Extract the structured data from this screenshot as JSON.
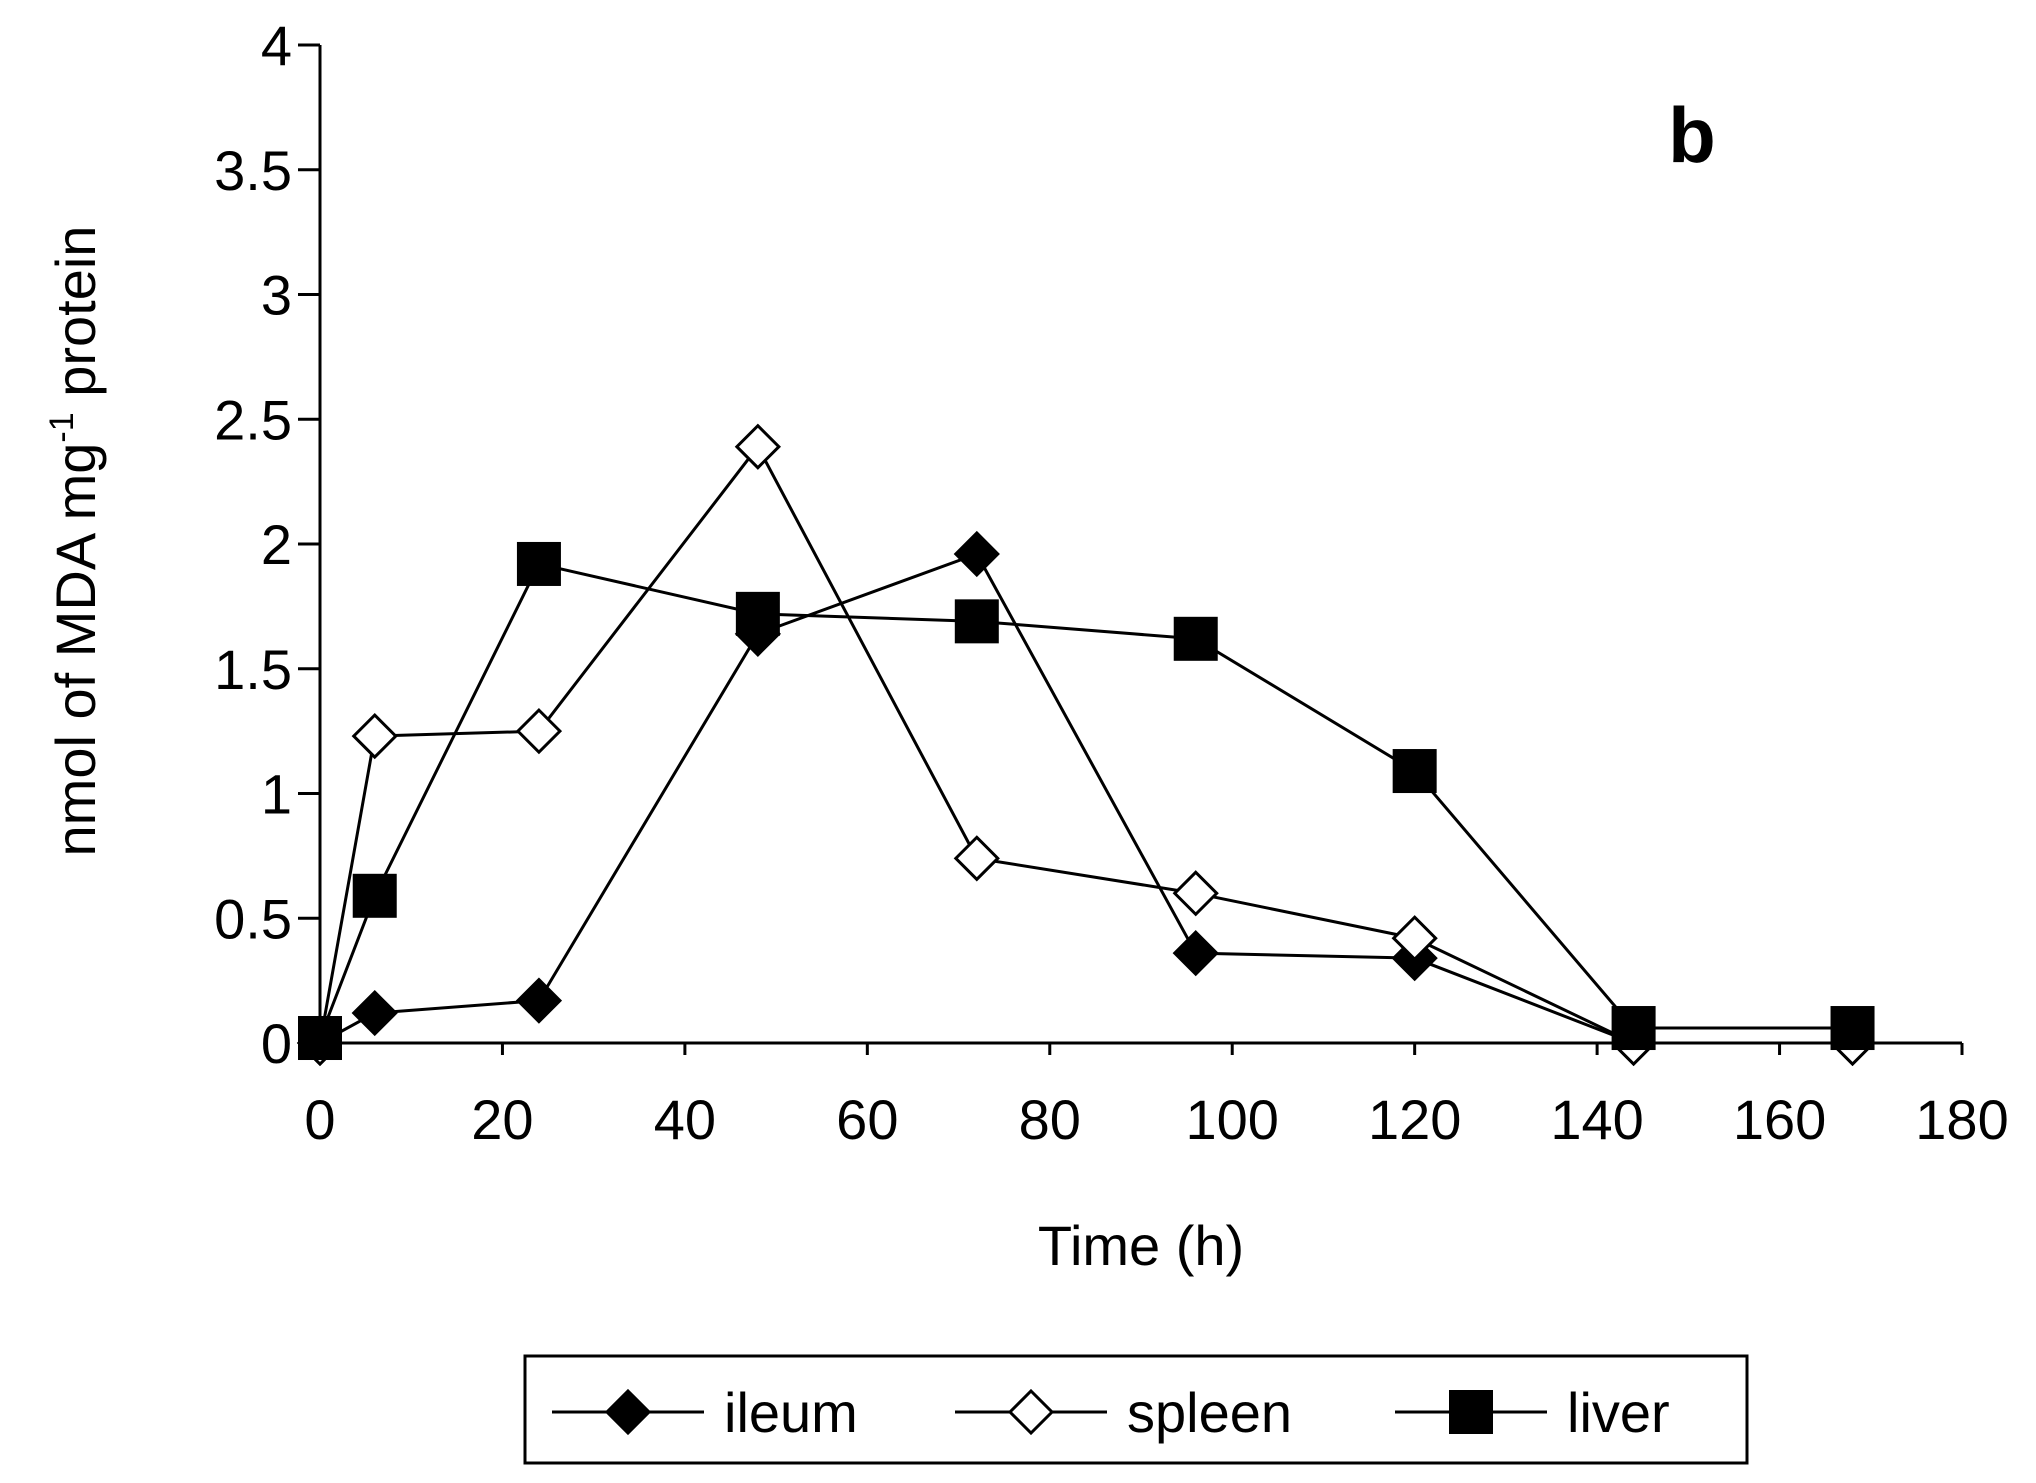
{
  "chart_data": {
    "type": "line",
    "panel_label": "b",
    "xlabel": "Time (h)",
    "ylabel_main": "nmol of MDA mg",
    "ylabel_sup": "-1",
    "ylabel_end": " protein",
    "xlim": [
      0,
      180
    ],
    "ylim": [
      0,
      4
    ],
    "xticks": [
      0,
      20,
      40,
      60,
      80,
      100,
      120,
      140,
      160,
      180
    ],
    "yticks": [
      0,
      0.5,
      1,
      1.5,
      2,
      2.5,
      3,
      3.5,
      4
    ],
    "grid": false,
    "legend_position": "bottom",
    "series": [
      {
        "name": "ileum",
        "marker": "diamond-filled",
        "color": "#000000",
        "x": [
          0,
          6,
          24,
          48,
          72,
          96,
          120,
          144,
          168
        ],
        "y": [
          0.0,
          0.12,
          0.17,
          1.64,
          1.96,
          0.36,
          0.34,
          0.0,
          0.0
        ]
      },
      {
        "name": "spleen",
        "marker": "diamond-open",
        "color": "#000000",
        "x": [
          0,
          6,
          24,
          48,
          72,
          96,
          120,
          144,
          168
        ],
        "y": [
          0.0,
          1.23,
          1.25,
          2.39,
          0.74,
          0.6,
          0.42,
          0.0,
          0.0
        ]
      },
      {
        "name": "liver",
        "marker": "square-filled",
        "color": "#000000",
        "x": [
          0,
          6,
          24,
          48,
          72,
          96,
          120,
          144,
          168
        ],
        "y": [
          0.02,
          0.59,
          1.92,
          1.72,
          1.69,
          1.62,
          1.09,
          0.06,
          0.06
        ]
      }
    ]
  }
}
